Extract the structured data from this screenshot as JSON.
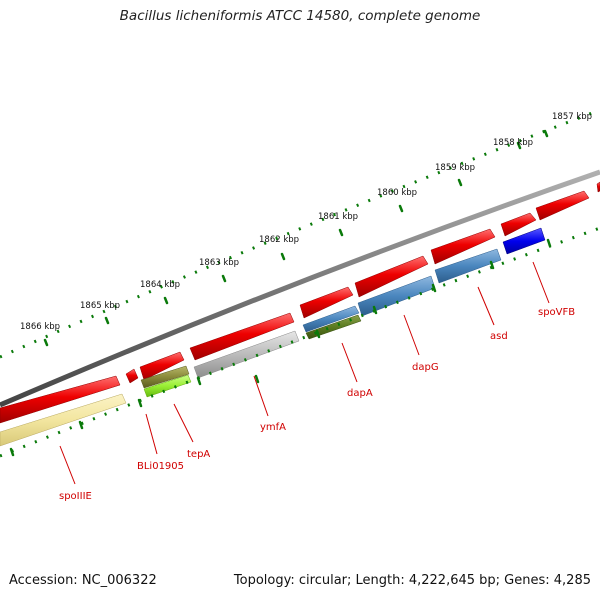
{
  "title": "Bacillus licheniformis ATCC 14580, complete genome",
  "footer": {
    "accession": "Accession: NC_006322",
    "topology": "Topology: circular; Length: 4,222,645 bp; Genes: 4,285"
  },
  "ticks": [
    "1857 kbp",
    "1858 kbp",
    "1859 kbp",
    "1860 kbp",
    "1861 kbp",
    "1862 kbp",
    "1863 kbp",
    "1864 kbp",
    "1865 kbp",
    "1866 kbp"
  ],
  "genes": [
    "spoVFB",
    "asd",
    "dapG",
    "dapA",
    "ymfA",
    "tepA",
    "BLi01905",
    "spoIIIE"
  ],
  "colors": {
    "backbone": "#7a7a7a",
    "forward_gene": "#ee0000",
    "scale_ticks": "#0a7a0a",
    "label": "#d00000",
    "yellow_feature": "#f3e6a0",
    "steelblue_feature": "#4a86be",
    "blue_feature": "#0000ee",
    "olive_feature": "#8a8a3a",
    "lime_feature": "#99ee33",
    "grey_feature": "#bbbbbb"
  }
}
